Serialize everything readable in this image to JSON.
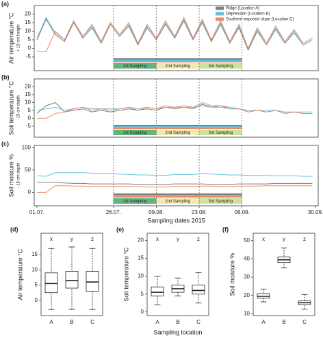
{
  "chart_data": [
    {
      "type": "line",
      "panel_label": "(a)",
      "y_label": "Air temperature °C",
      "y_sublabel": "+ 15 cm height",
      "xlim": [
        0,
        91
      ],
      "ylim": [
        -13,
        25
      ],
      "yticks": [
        -5,
        0,
        5,
        10,
        15,
        20
      ],
      "legend": "top-right",
      "x": [
        0,
        3,
        6,
        9,
        12,
        15,
        18,
        21,
        24,
        27,
        30,
        33,
        36,
        39,
        42,
        45,
        48,
        51,
        54,
        57,
        60,
        63,
        66,
        69,
        72,
        75,
        78,
        81,
        84,
        87,
        90
      ],
      "series": [
        {
          "name": "Ridge (Location A)",
          "color": "#7f7f7f",
          "values": [
            5,
            17,
            8,
            4,
            15,
            6,
            12,
            3,
            14,
            7,
            13,
            2,
            12,
            5,
            14,
            6,
            16,
            5,
            15,
            4,
            14,
            3,
            12,
            -1,
            10,
            2,
            11,
            3,
            9,
            2,
            5
          ]
        },
        {
          "name": "Depression (Location B)",
          "color": "#63c3de",
          "values": [
            6,
            18,
            9,
            5,
            16,
            7,
            13,
            4,
            15,
            8,
            14,
            3,
            13,
            6,
            15,
            7,
            17,
            6,
            16,
            5,
            15,
            4,
            13,
            0,
            11,
            3,
            12,
            4,
            10,
            3,
            6
          ]
        },
        {
          "name": "Southern-exposed slope (Location C)",
          "color": "#ee8a62",
          "values": [
            -2,
            -2,
            10,
            5,
            16,
            7,
            14,
            4,
            15,
            8,
            15,
            3,
            14,
            6,
            16,
            7,
            18,
            6,
            17,
            5,
            16,
            4,
            14,
            0,
            12,
            3,
            13,
            4,
            11,
            3,
            6
          ]
        }
      ],
      "bands": [
        {
          "label": "1st Sampling",
          "start": 25,
          "end": 39,
          "color": "#63b57f"
        },
        {
          "label": "2nd Sampling",
          "start": 39,
          "end": 53,
          "color": "#f1e8b2"
        },
        {
          "label": "3rd Sampling",
          "start": 53,
          "end": 67,
          "color": "#cde39a"
        }
      ]
    },
    {
      "type": "line",
      "panel_label": "(b)",
      "y_label": "Soil temperature °C",
      "y_sublabel": "- 15 cm depth",
      "xlim": [
        0,
        91
      ],
      "ylim": [
        -12,
        25
      ],
      "yticks": [
        -5,
        0,
        5,
        10,
        15,
        20
      ],
      "x": [
        0,
        3,
        6,
        9,
        12,
        15,
        18,
        21,
        24,
        27,
        30,
        33,
        36,
        39,
        42,
        45,
        48,
        51,
        54,
        57,
        60,
        63,
        66,
        69,
        72,
        75,
        78,
        81,
        84,
        87,
        90
      ],
      "series": [
        {
          "name": "Ridge (Location A)",
          "color": "#7f7f7f",
          "values": [
            3,
            8,
            10,
            4,
            5,
            6,
            4,
            5,
            4,
            5,
            6,
            5,
            6,
            5,
            7,
            6,
            7,
            6,
            9,
            7,
            8,
            6,
            6,
            4,
            5,
            4,
            5,
            3,
            4,
            3,
            3
          ]
        },
        {
          "name": "Depression (Location B)",
          "color": "#63c3de",
          "values": [
            5,
            6,
            7,
            5,
            6,
            7,
            6,
            6,
            6,
            6,
            7,
            6,
            7,
            6,
            7,
            7,
            7,
            7,
            8,
            7,
            7,
            6,
            6,
            5,
            5,
            5,
            5,
            4,
            4,
            4,
            4
          ]
        },
        {
          "name": "Southern-exposed slope (Location C)",
          "color": "#ee8a62",
          "values": [
            0,
            0,
            3,
            4,
            6,
            7,
            5,
            6,
            5,
            6,
            7,
            5,
            7,
            6,
            8,
            7,
            8,
            7,
            10,
            8,
            8,
            7,
            6,
            4,
            5,
            4,
            5,
            3,
            4,
            3,
            3
          ]
        }
      ],
      "bands": [
        {
          "label": "1st Sampling",
          "start": 25,
          "end": 39,
          "color": "#63b57f"
        },
        {
          "label": "2nd Sampling",
          "start": 39,
          "end": 53,
          "color": "#f1e8b2"
        },
        {
          "label": "3rd Sampling",
          "start": 53,
          "end": 67,
          "color": "#cde39a"
        }
      ]
    },
    {
      "type": "line",
      "panel_label": "(c)",
      "y_label": "Soil moisture %",
      "y_sublabel": "- 15 cm depth",
      "xlim": [
        0,
        91
      ],
      "ylim": [
        -30,
        105
      ],
      "yticks": [
        0,
        50,
        100
      ],
      "x_label": "Sampling dates 2015",
      "xticks": [
        {
          "value": 0,
          "label": "01.07."
        },
        {
          "value": 25,
          "label": "26.07."
        },
        {
          "value": 39,
          "label": "09.08."
        },
        {
          "value": 53,
          "label": "23.08."
        },
        {
          "value": 67,
          "label": "06.09."
        },
        {
          "value": 91,
          "label": "30.09."
        }
      ],
      "x": [
        0,
        3,
        6,
        9,
        12,
        15,
        18,
        21,
        24,
        27,
        30,
        33,
        36,
        39,
        42,
        45,
        48,
        51,
        54,
        57,
        60,
        63,
        66,
        69,
        72,
        75,
        78,
        81,
        84,
        87,
        90
      ],
      "series": [
        {
          "name": "Ridge (Location A)",
          "color": "#7f7f7f",
          "values": [
            23,
            23,
            22,
            21,
            20,
            20,
            19,
            19,
            19,
            19,
            19,
            18,
            18,
            18,
            18,
            19,
            19,
            19,
            19,
            18,
            18,
            18,
            19,
            19,
            19,
            19,
            20,
            20,
            20,
            20,
            20
          ]
        },
        {
          "name": "Depression (Location B)",
          "color": "#63c3de",
          "values": [
            37,
            36,
            44,
            44,
            44,
            44,
            43,
            42,
            42,
            41,
            40,
            39,
            39,
            38,
            38,
            40,
            40,
            40,
            42,
            41,
            40,
            39,
            39,
            38,
            38,
            38,
            37,
            37,
            37,
            36,
            36
          ]
        },
        {
          "name": "Southern-exposed slope (Location C)",
          "color": "#ee8a62",
          "values": [
            0,
            0,
            15,
            15,
            14,
            14,
            13,
            13,
            13,
            13,
            13,
            13,
            12,
            12,
            12,
            13,
            13,
            13,
            14,
            14,
            13,
            13,
            14,
            14,
            14,
            15,
            15,
            15,
            15,
            15,
            15
          ]
        }
      ],
      "bands": [
        {
          "label": "1st Sampling",
          "start": 25,
          "end": 39,
          "color": "#63b57f"
        },
        {
          "label": "2nd Sampling",
          "start": 39,
          "end": 53,
          "color": "#f1e8b2"
        },
        {
          "label": "3rd Sampling",
          "start": 53,
          "end": 67,
          "color": "#cde39a"
        }
      ]
    },
    {
      "type": "box",
      "panel_label": "(d)",
      "y_label": "Air temperature °C",
      "ylim": [
        -5,
        22
      ],
      "yticks": [
        0,
        5,
        10,
        15
      ],
      "categories": [
        "A",
        "B",
        "C"
      ],
      "group_letters": [
        "x",
        "y",
        "z"
      ],
      "boxes": [
        {
          "min": -3,
          "q1": 2.5,
          "median": 5.5,
          "q3": 9,
          "max": 17
        },
        {
          "min": -3,
          "q1": 4,
          "median": 6.5,
          "q3": 9.5,
          "max": 17.5
        },
        {
          "min": -3,
          "q1": 3,
          "median": 6,
          "q3": 9.5,
          "max": 17
        }
      ]
    },
    {
      "type": "box",
      "panel_label": "(e)",
      "y_label": "Soil temperature °C",
      "ylim": [
        -1,
        22
      ],
      "yticks": [
        0,
        5,
        10,
        15,
        20
      ],
      "x_label": "Sampling location",
      "categories": [
        "A",
        "B",
        "C"
      ],
      "group_letters": [
        "x",
        "y",
        "z"
      ],
      "boxes": [
        {
          "min": 2,
          "q1": 4.5,
          "median": 5.5,
          "q3": 7,
          "max": 10
        },
        {
          "min": 4.5,
          "q1": 5.5,
          "median": 6.5,
          "q3": 7.5,
          "max": 9.5
        },
        {
          "min": 2.5,
          "q1": 5,
          "median": 6,
          "q3": 7.5,
          "max": 11
        }
      ]
    },
    {
      "type": "box",
      "panel_label": "(f)",
      "y_label": "Soil moisture %",
      "ylim": [
        9,
        54
      ],
      "yticks": [
        10,
        20,
        30,
        40,
        50
      ],
      "categories": [
        "A",
        "B",
        "C"
      ],
      "group_letters": [
        "x",
        "y",
        "z"
      ],
      "boxes": [
        {
          "min": 16.5,
          "q1": 18.5,
          "median": 19.5,
          "q3": 21,
          "max": 23.5
        },
        {
          "min": 35,
          "q1": 38,
          "median": 39.5,
          "q3": 41,
          "max": 46
        },
        {
          "min": 12.5,
          "q1": 15,
          "median": 16,
          "q3": 17,
          "max": 20.5
        }
      ]
    }
  ]
}
